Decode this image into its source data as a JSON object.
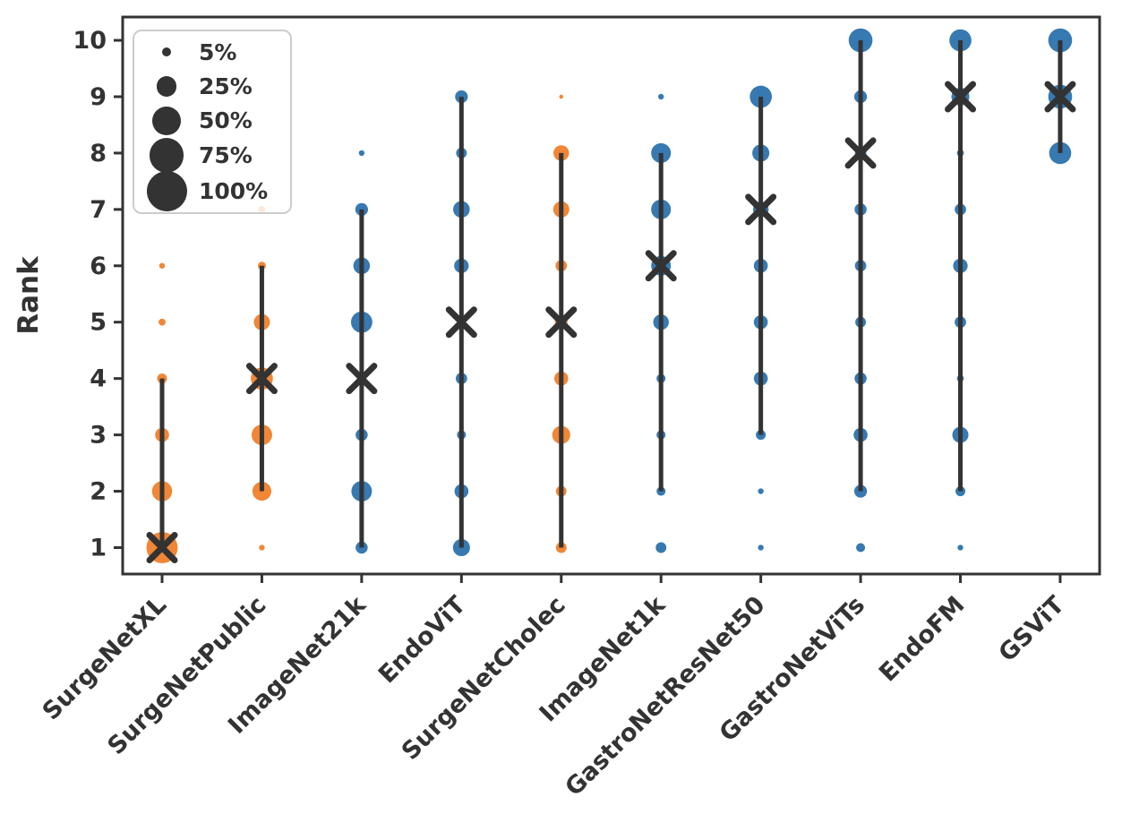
{
  "chart_data": {
    "type": "scatter",
    "subtype": "bubble-rank-distribution",
    "title": "",
    "xlabel": "",
    "ylabel": "Rank",
    "ylim": [
      1,
      10
    ],
    "yticks": [
      1,
      2,
      3,
      4,
      5,
      6,
      7,
      8,
      9,
      10
    ],
    "grid": false,
    "legend_position": "upper left",
    "size_legend": {
      "labels": [
        "5%",
        "25%",
        "50%",
        "75%",
        "100%"
      ],
      "values": [
        5,
        25,
        50,
        75,
        100
      ]
    },
    "colors": {
      "orange": "#f08636",
      "blue": "#3779b1",
      "dark": "#333333",
      "legend_border": "#cccccc"
    },
    "series": [
      {
        "name": "SurgeNetXL",
        "color": "orange",
        "median": 1,
        "line": [
          1,
          4
        ],
        "points": [
          {
            "rank": 1,
            "pct": 60
          },
          {
            "rank": 2,
            "pct": 25
          },
          {
            "rank": 3,
            "pct": 12
          },
          {
            "rank": 4,
            "pct": 6
          },
          {
            "rank": 5,
            "pct": 3
          },
          {
            "rank": 6,
            "pct": 2
          }
        ]
      },
      {
        "name": "SurgeNetPublic",
        "color": "orange",
        "median": 4,
        "line": [
          2,
          6
        ],
        "points": [
          {
            "rank": 1,
            "pct": 2
          },
          {
            "rank": 2,
            "pct": 22
          },
          {
            "rank": 3,
            "pct": 26
          },
          {
            "rank": 4,
            "pct": 30
          },
          {
            "rank": 5,
            "pct": 16
          },
          {
            "rank": 6,
            "pct": 4
          },
          {
            "rank": 7,
            "pct": 3
          }
        ]
      },
      {
        "name": "ImageNet21k",
        "color": "blue",
        "median": 4,
        "line": [
          1,
          7
        ],
        "points": [
          {
            "rank": 1,
            "pct": 9
          },
          {
            "rank": 2,
            "pct": 26
          },
          {
            "rank": 3,
            "pct": 9
          },
          {
            "rank": 4,
            "pct": 5
          },
          {
            "rank": 5,
            "pct": 28
          },
          {
            "rank": 6,
            "pct": 17
          },
          {
            "rank": 7,
            "pct": 10
          },
          {
            "rank": 8,
            "pct": 2
          }
        ]
      },
      {
        "name": "EndoViT",
        "color": "blue",
        "median": 5,
        "line": [
          1,
          9
        ],
        "points": [
          {
            "rank": 1,
            "pct": 18
          },
          {
            "rank": 2,
            "pct": 12
          },
          {
            "rank": 3,
            "pct": 5
          },
          {
            "rank": 4,
            "pct": 8
          },
          {
            "rank": 5,
            "pct": 2
          },
          {
            "rank": 6,
            "pct": 13
          },
          {
            "rank": 7,
            "pct": 17
          },
          {
            "rank": 8,
            "pct": 7
          },
          {
            "rank": 9,
            "pct": 10
          }
        ]
      },
      {
        "name": "SurgeNetCholec",
        "color": "orange",
        "median": 5,
        "line": [
          1,
          8
        ],
        "points": [
          {
            "rank": 1,
            "pct": 7
          },
          {
            "rank": 2,
            "pct": 7
          },
          {
            "rank": 3,
            "pct": 20
          },
          {
            "rank": 4,
            "pct": 12
          },
          {
            "rank": 5,
            "pct": 10
          },
          {
            "rank": 6,
            "pct": 8
          },
          {
            "rank": 7,
            "pct": 16
          },
          {
            "rank": 8,
            "pct": 15
          },
          {
            "rank": 9,
            "pct": 1
          }
        ]
      },
      {
        "name": "ImageNet1k",
        "color": "blue",
        "median": 6,
        "line": [
          2,
          8
        ],
        "points": [
          {
            "rank": 1,
            "pct": 7
          },
          {
            "rank": 2,
            "pct": 5
          },
          {
            "rank": 3,
            "pct": 5
          },
          {
            "rank": 4,
            "pct": 5
          },
          {
            "rank": 5,
            "pct": 15
          },
          {
            "rank": 6,
            "pct": 24
          },
          {
            "rank": 7,
            "pct": 24
          },
          {
            "rank": 8,
            "pct": 24
          },
          {
            "rank": 9,
            "pct": 2
          }
        ]
      },
      {
        "name": "GastroNetResNet50",
        "color": "blue",
        "median": 7,
        "line": [
          3,
          9
        ],
        "points": [
          {
            "rank": 1,
            "pct": 2
          },
          {
            "rank": 2,
            "pct": 2
          },
          {
            "rank": 3,
            "pct": 6
          },
          {
            "rank": 4,
            "pct": 12
          },
          {
            "rank": 5,
            "pct": 12
          },
          {
            "rank": 6,
            "pct": 12
          },
          {
            "rank": 7,
            "pct": 15
          },
          {
            "rank": 8,
            "pct": 18
          },
          {
            "rank": 9,
            "pct": 30
          }
        ]
      },
      {
        "name": "GastroNetViTs",
        "color": "blue",
        "median": 8,
        "line": [
          2,
          10
        ],
        "points": [
          {
            "rank": 1,
            "pct": 5
          },
          {
            "rank": 2,
            "pct": 10
          },
          {
            "rank": 3,
            "pct": 12
          },
          {
            "rank": 4,
            "pct": 9
          },
          {
            "rank": 5,
            "pct": 7
          },
          {
            "rank": 6,
            "pct": 8
          },
          {
            "rank": 7,
            "pct": 9
          },
          {
            "rank": 8,
            "pct": 8
          },
          {
            "rank": 9,
            "pct": 10
          },
          {
            "rank": 10,
            "pct": 35
          }
        ]
      },
      {
        "name": "EndoFM",
        "color": "blue",
        "median": 9,
        "line": [
          2,
          10
        ],
        "points": [
          {
            "rank": 1,
            "pct": 2
          },
          {
            "rank": 2,
            "pct": 6
          },
          {
            "rank": 3,
            "pct": 16
          },
          {
            "rank": 4,
            "pct": 3
          },
          {
            "rank": 5,
            "pct": 8
          },
          {
            "rank": 6,
            "pct": 13
          },
          {
            "rank": 7,
            "pct": 8
          },
          {
            "rank": 8,
            "pct": 3
          },
          {
            "rank": 9,
            "pct": 20
          },
          {
            "rank": 10,
            "pct": 30
          }
        ]
      },
      {
        "name": "GSViT",
        "color": "blue",
        "median": 9,
        "line": [
          8,
          10
        ],
        "points": [
          {
            "rank": 8,
            "pct": 30
          },
          {
            "rank": 9,
            "pct": 35
          },
          {
            "rank": 10,
            "pct": 35
          }
        ]
      }
    ]
  }
}
